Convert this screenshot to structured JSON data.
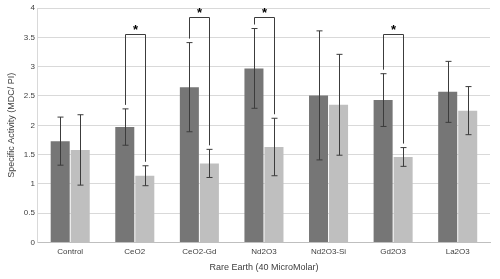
{
  "chart_data": {
    "type": "bar",
    "x_label": "Rare Earth (40 MicroMolar)",
    "y_label": "Specific Activity (MDC/ PI)",
    "categories": [
      "Control",
      "CeO2",
      "CeO2-Gd",
      "Nd2O3",
      "Nd2O3-Si",
      "Gd2O3",
      "La2O3"
    ],
    "series": [
      {
        "color": "#767676",
        "values": [
          1.73,
          1.97,
          2.65,
          2.97,
          2.51,
          2.43,
          2.57
        ],
        "errors": [
          0.41,
          0.31,
          0.76,
          0.68,
          1.1,
          0.45,
          0.52
        ]
      },
      {
        "color": "#bfbfbf",
        "values": [
          1.58,
          1.14,
          1.35,
          1.63,
          2.35,
          1.46,
          2.25
        ],
        "errors": [
          0.6,
          0.17,
          0.24,
          0.49,
          0.86,
          0.16,
          0.41
        ]
      }
    ],
    "significance": [
      {
        "category": "CeO2",
        "label": "*",
        "y": 3.55
      },
      {
        "category": "CeO2-Gd",
        "label": "*",
        "y": 3.85
      },
      {
        "category": "Nd2O3",
        "label": "*",
        "y": 3.85
      },
      {
        "category": "Gd2O3",
        "label": "*",
        "y": 3.55
      }
    ],
    "ylim": [
      0,
      4
    ],
    "yticks": [
      0,
      0.5,
      1,
      1.5,
      2,
      2.5,
      3,
      3.5,
      4
    ],
    "grid": true
  }
}
